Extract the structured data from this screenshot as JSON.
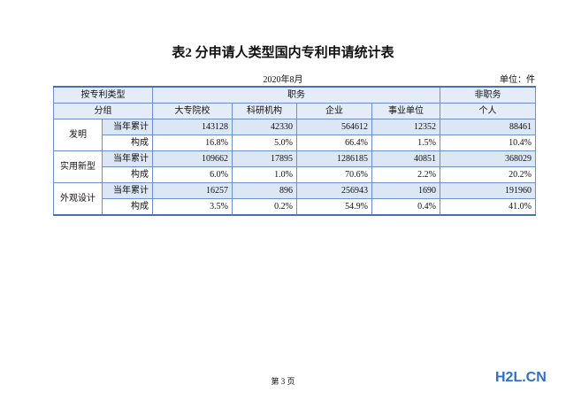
{
  "title": "表2  分申请人类型国内专利申请统计表",
  "date": "2020年8月",
  "unit": "单位：件",
  "table": {
    "header": {
      "type_label": "按专利类型",
      "group_label": "分组",
      "service": "职务",
      "non_service": "非职务",
      "columns": [
        "大专院校",
        "科研机构",
        "企业",
        "事业单位",
        "个人"
      ]
    },
    "groups": [
      {
        "name": "发明",
        "rows": [
          {
            "label": "当年累计",
            "values": [
              143128,
              42330,
              564612,
              12352,
              88461
            ]
          },
          {
            "label": "构成",
            "values": [
              "16.8%",
              "5.0%",
              "66.4%",
              "1.5%",
              "10.4%"
            ]
          }
        ]
      },
      {
        "name": "实用新型",
        "rows": [
          {
            "label": "当年累计",
            "values": [
              109662,
              17895,
              1286185,
              40851,
              368029
            ]
          },
          {
            "label": "构成",
            "values": [
              "6.0%",
              "1.0%",
              "70.6%",
              "2.2%",
              "20.2%"
            ]
          }
        ]
      },
      {
        "name": "外观设计",
        "rows": [
          {
            "label": "当年累计",
            "values": [
              16257,
              896,
              256943,
              1690,
              191960
            ]
          },
          {
            "label": "构成",
            "values": [
              "3.5%",
              "0.2%",
              "54.9%",
              "0.4%",
              "41.0%"
            ]
          }
        ]
      }
    ]
  },
  "footer": "第 3 页",
  "watermark": "H2L.CN"
}
